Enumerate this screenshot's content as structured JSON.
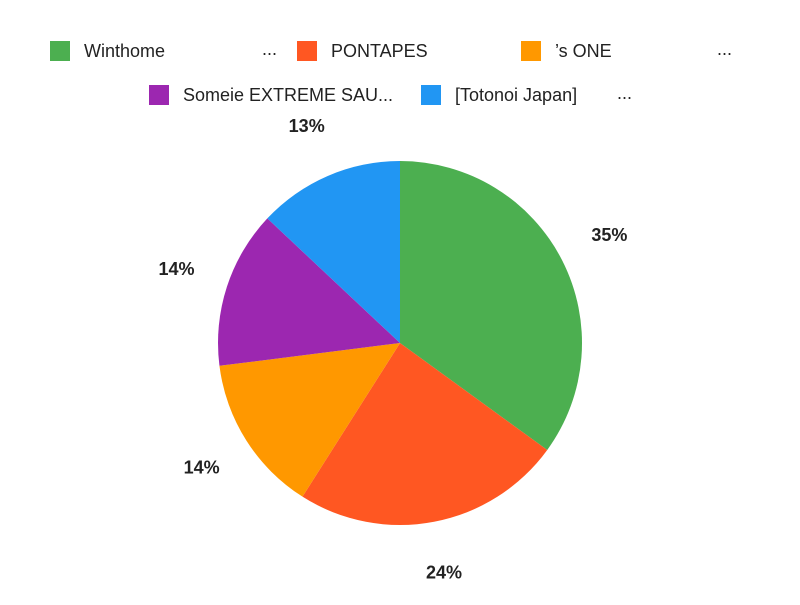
{
  "chart_data": {
    "type": "pie",
    "slices": [
      {
        "name": "Winthome",
        "legend_label": "Winthome",
        "value": 35,
        "label": "35%",
        "color": "#4caf50"
      },
      {
        "name": "PONTAPES",
        "legend_label": "PONTAPES",
        "value": 24,
        "label": "24%",
        "color": "#ff5722"
      },
      {
        "name": "’s ONE",
        "legend_label": "’s ONE",
        "value": 14,
        "label": "14%",
        "color": "#ff9800"
      },
      {
        "name": "Someie EXTREME SAU...",
        "legend_label": "Someie EXTREME SAU...",
        "value": 14,
        "label": "14%",
        "color": "#9c27b0"
      },
      {
        "name": "[Totonoi Japan]",
        "legend_label": "[Totonoi Japan]",
        "value": 13,
        "label": "13%",
        "color": "#2196f3"
      }
    ],
    "legend": {
      "placement": "top",
      "ellipsis": "..."
    },
    "start_angle": "12 o'clock",
    "direction": "clockwise"
  }
}
